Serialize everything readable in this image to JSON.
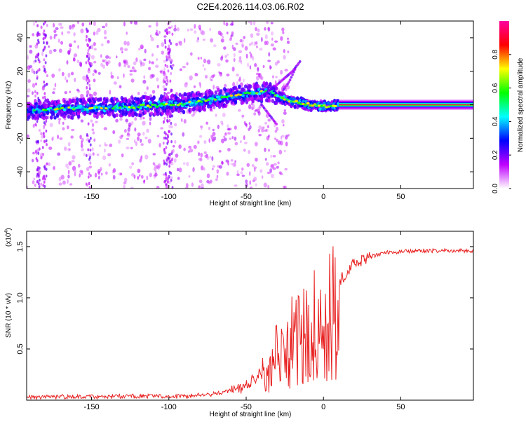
{
  "title": "C2E4.2026.114.03.06.R02",
  "spectrogram": {
    "type": "heatmap",
    "xlabel": "Height of straight line (km)",
    "ylabel": "Frequency (Hz)",
    "xlim": [
      -192,
      97
    ],
    "ylim": [
      -50,
      50
    ],
    "xticks": [
      -150,
      -100,
      -50,
      0,
      50
    ],
    "xtick_labels": [
      "-150",
      "-100",
      "-50",
      "0",
      "50"
    ],
    "yticks": [
      -40,
      -20,
      0,
      20,
      40
    ],
    "ytick_labels": [
      "-40",
      "-20",
      "0",
      "20",
      "40"
    ],
    "ridge": {
      "x": [
        -192,
        -150,
        -120,
        -100,
        -80,
        -60,
        -45,
        -35,
        -28,
        -20,
        -10,
        0,
        10,
        97
      ],
      "y": [
        -3,
        -2,
        -1,
        0,
        2,
        5,
        7,
        8,
        4,
        2,
        0,
        -1,
        0,
        0
      ]
    },
    "colorbar": {
      "label": "Normalized spectral amplitude",
      "ticks": [
        0.0,
        0.2,
        0.4,
        0.6,
        0.8
      ],
      "tick_labels": [
        "0.0",
        "0.2",
        "0.4",
        "0.6",
        "0.8"
      ],
      "colors": [
        "#ffffff",
        "#c000ff",
        "#0000ff",
        "#00ffff",
        "#00ff00",
        "#ffff00",
        "#ff0000",
        "#ff00a0"
      ]
    }
  },
  "snr": {
    "type": "line",
    "xlabel": "Height of straight line (km)",
    "ylabel": "SNR (10 * v/v)",
    "scale_label": "(x10",
    "scale_exp": "4",
    "scale_close": ")",
    "xlim": [
      -192,
      97
    ],
    "ylim": [
      0,
      1.65
    ],
    "xticks": [
      -150,
      -100,
      -50,
      0,
      50
    ],
    "xtick_labels": [
      "-150",
      "-100",
      "-50",
      "0",
      "50"
    ],
    "yticks": [
      0.5,
      1.0,
      1.5
    ],
    "ytick_labels": [
      "0.5",
      "1.0",
      "1.5"
    ],
    "color": "#e82020",
    "envelope": {
      "x": [
        -192,
        -120,
        -90,
        -70,
        -55,
        -45,
        -38,
        -30,
        -25,
        -20,
        -15,
        -10,
        -5,
        0,
        5,
        10,
        15,
        20,
        30,
        40,
        50,
        60,
        97
      ],
      "y": [
        0.03,
        0.04,
        0.04,
        0.06,
        0.11,
        0.2,
        0.35,
        0.55,
        0.7,
        0.78,
        0.82,
        0.86,
        0.92,
        0.98,
        1.05,
        1.15,
        1.25,
        1.33,
        1.4,
        1.44,
        1.45,
        1.46,
        1.46
      ]
    }
  }
}
